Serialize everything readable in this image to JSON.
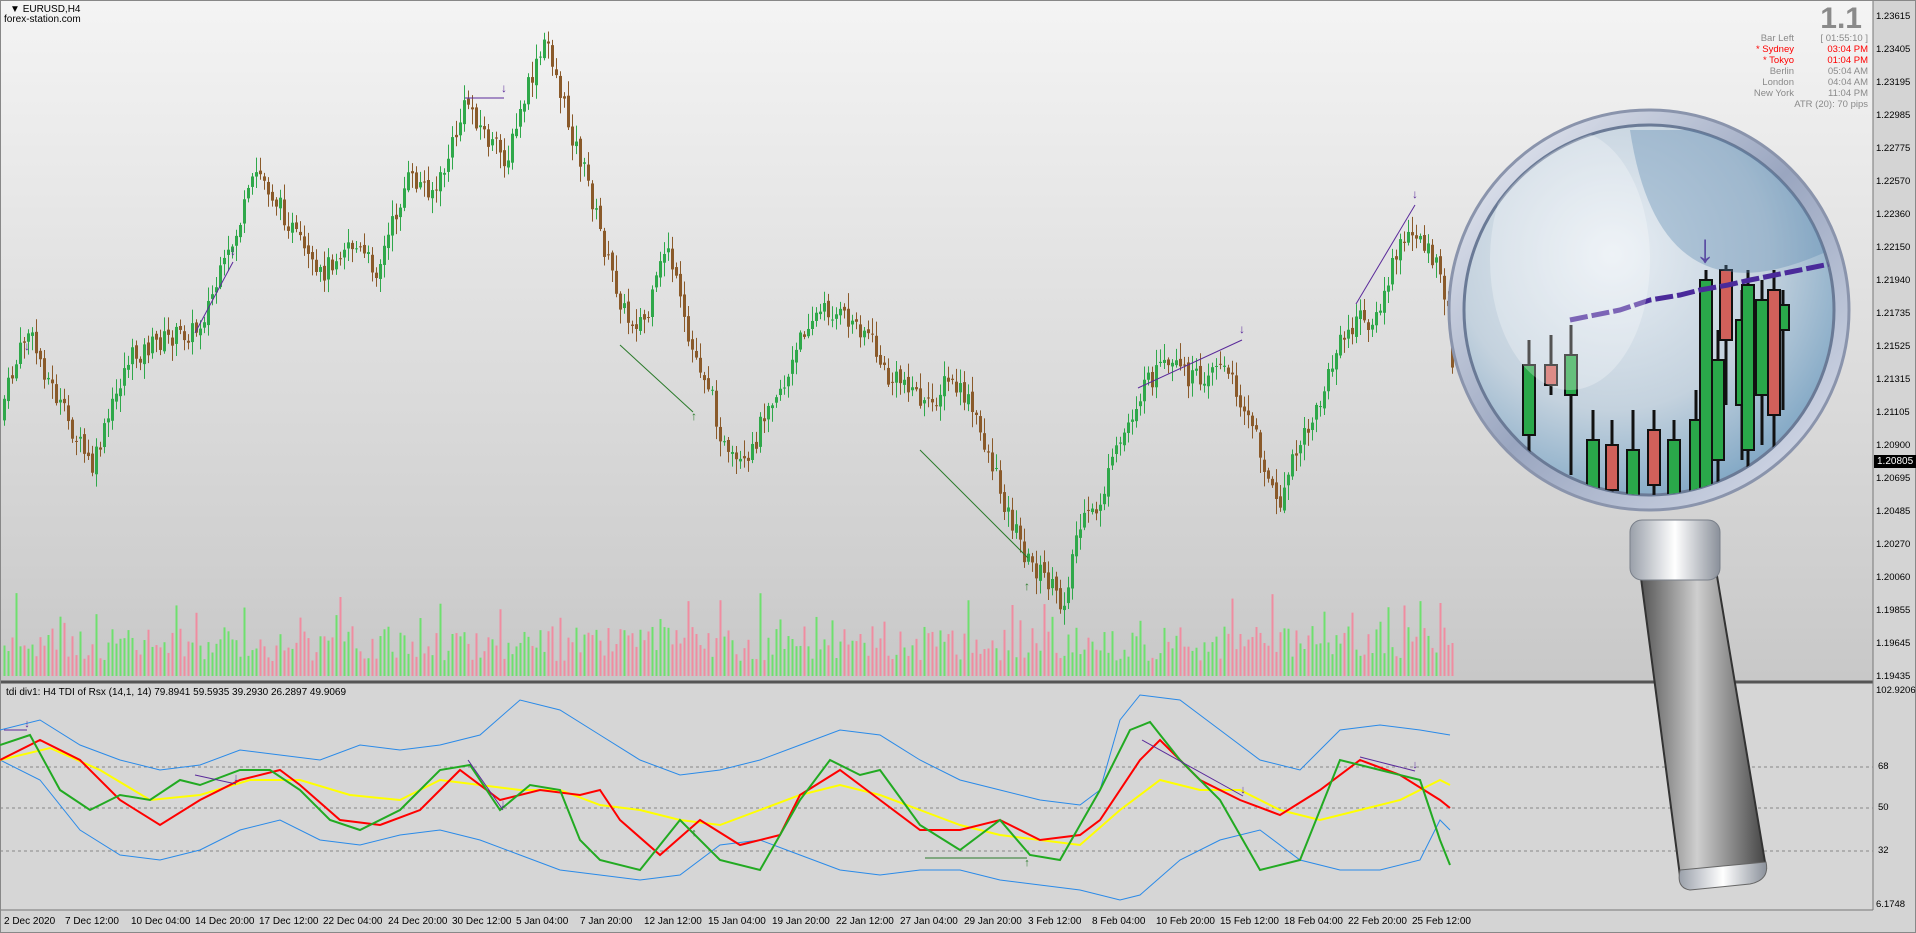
{
  "chart": {
    "symbol_title": "EURUSD,H4",
    "broker": "forex-station.com",
    "big_label": "1.1",
    "menu_icon": "triangle-down-icon",
    "current_price": "1.20805",
    "price_axis": [
      "1.23615",
      "1.23405",
      "1.23195",
      "1.22985",
      "1.22775",
      "1.22570",
      "1.22360",
      "1.22150",
      "1.21940",
      "1.21735",
      "1.21525",
      "1.21315",
      "1.21105",
      "1.20900",
      "1.20695",
      "1.20485",
      "1.20270",
      "1.20060",
      "1.19855",
      "1.19645",
      "1.19435"
    ]
  },
  "clocks": [
    {
      "name": "Bar Left",
      "time": "[ 01:55:10 ]",
      "color": "#8a8a8a"
    },
    {
      "name": "* Sydney",
      "time": "03:04 PM",
      "color": "#ff0000"
    },
    {
      "name": "* Tokyo",
      "time": "01:04 PM",
      "color": "#ff0000"
    },
    {
      "name": "Berlin",
      "time": "05:04 AM",
      "color": "#8a8a8a"
    },
    {
      "name": "London",
      "time": "04:04 AM",
      "color": "#8a8a8a"
    },
    {
      "name": "New York",
      "time": "11:04 PM",
      "color": "#8a8a8a"
    }
  ],
  "atr": "ATR (20): 70 pips",
  "indicator": {
    "label": "tdi div1: H4 TDI of Rsx  (14,1, 14) 79.8941 59.5935 39.2930 26.2897 49.9069",
    "levels": [
      "102.9206",
      "68",
      "50",
      "32",
      "6.1748"
    ]
  },
  "date_axis": [
    "2 Dec 2020",
    "7 Dec 12:00",
    "10 Dec 04:00",
    "14 Dec 20:00",
    "17 Dec 12:00",
    "22 Dec 04:00",
    "24 Dec 20:00",
    "30 Dec 12:00",
    "5 Jan 04:00",
    "7 Jan 20:00",
    "12 Jan 12:00",
    "15 Jan 04:00",
    "19 Jan 20:00",
    "22 Jan 12:00",
    "27 Jan 04:00",
    "29 Jan 20:00",
    "3 Feb 12:00",
    "8 Feb 04:00",
    "10 Feb 20:00",
    "15 Feb 12:00",
    "18 Feb 04:00",
    "22 Feb 20:00",
    "25 Feb 12:00"
  ],
  "magnifier": {
    "icon": "magnifying-glass-icon"
  },
  "colors": {
    "bull": "#2fa84a",
    "bear": "#8a5a2a",
    "tdi_red": "#ff0000",
    "tdi_green": "#22aa22",
    "tdi_yellow": "#ffff00",
    "tdi_blue": "#2a8ae8",
    "divergence": "#5a2a9a",
    "vol_bull": "#6ee06e",
    "vol_bear": "#f08ca0"
  }
}
